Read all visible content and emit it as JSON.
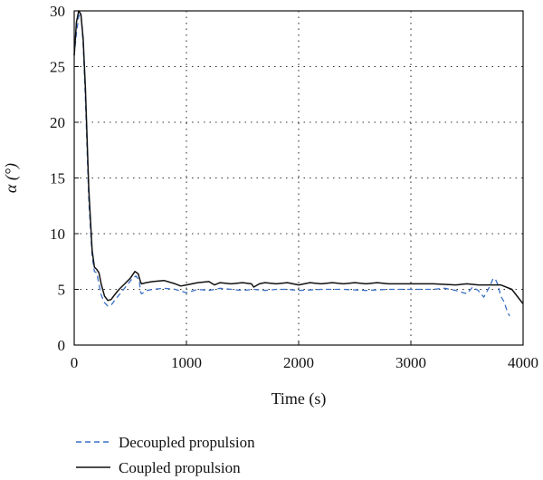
{
  "chart_data": {
    "type": "line",
    "title": "",
    "xlabel": "Time (s)",
    "ylabel": "α (°)",
    "xlim": [
      0,
      4000
    ],
    "ylim": [
      0,
      30
    ],
    "xticks": [
      0,
      1000,
      2000,
      3000,
      4000
    ],
    "yticks": [
      0,
      5,
      10,
      15,
      20,
      25,
      30
    ],
    "grid": "dotted",
    "legend_position": "bottom-left, below plot",
    "series": [
      {
        "name": "Decoupled propulsion",
        "style": "dashed",
        "color": "#3a6fc4",
        "x": [
          0,
          20,
          40,
          60,
          80,
          100,
          130,
          160,
          180,
          200,
          220,
          240,
          270,
          300,
          330,
          360,
          400,
          440,
          480,
          520,
          550,
          580,
          590,
          600,
          650,
          700,
          800,
          900,
          1000,
          1100,
          1200,
          1300,
          1400,
          1500,
          1600,
          1700,
          1800,
          1900,
          2000,
          2200,
          2400,
          2600,
          2800,
          3000,
          3200,
          3300,
          3400,
          3500,
          3550,
          3600,
          3650,
          3700,
          3730,
          3750,
          3780,
          3800,
          3830,
          3860,
          3880
        ],
        "y": [
          26,
          28,
          29.5,
          29.8,
          27,
          22,
          13,
          8,
          6.6,
          6.5,
          5.5,
          4.5,
          3.8,
          3.5,
          3.6,
          4.0,
          4.5,
          5.0,
          5.5,
          6.0,
          6.2,
          5.8,
          4.8,
          4.6,
          4.9,
          5.0,
          5.1,
          5.0,
          4.7,
          5.0,
          4.9,
          5.1,
          5.0,
          4.9,
          5.0,
          4.9,
          5.0,
          5.0,
          4.9,
          5.0,
          5.0,
          4.9,
          5.0,
          5.0,
          5.0,
          5.1,
          4.9,
          4.6,
          5.2,
          4.9,
          4.3,
          5.2,
          5.9,
          6.0,
          5.3,
          4.4,
          3.9,
          3.0,
          2.6
        ]
      },
      {
        "name": "Coupled propulsion",
        "style": "solid",
        "color": "#111111",
        "x": [
          0,
          20,
          40,
          60,
          80,
          100,
          130,
          160,
          180,
          200,
          220,
          240,
          270,
          300,
          330,
          360,
          400,
          450,
          500,
          540,
          570,
          590,
          600,
          640,
          700,
          800,
          900,
          950,
          1000,
          1100,
          1200,
          1250,
          1300,
          1400,
          1500,
          1580,
          1600,
          1650,
          1700,
          1800,
          1900,
          2000,
          2100,
          2200,
          2300,
          2400,
          2500,
          2600,
          2700,
          2800,
          3000,
          3200,
          3400,
          3500,
          3600,
          3700,
          3800,
          3900,
          4000
        ],
        "y": [
          26,
          29,
          30,
          29.7,
          27.5,
          23,
          14,
          8.5,
          7.0,
          6.8,
          6.5,
          5.5,
          4.4,
          4.0,
          4.1,
          4.5,
          5.0,
          5.5,
          6.0,
          6.6,
          6.4,
          5.7,
          5.5,
          5.6,
          5.7,
          5.8,
          5.5,
          5.3,
          5.4,
          5.6,
          5.7,
          5.4,
          5.6,
          5.5,
          5.6,
          5.5,
          5.2,
          5.5,
          5.6,
          5.5,
          5.6,
          5.4,
          5.6,
          5.5,
          5.6,
          5.5,
          5.6,
          5.5,
          5.6,
          5.5,
          5.5,
          5.5,
          5.4,
          5.5,
          5.4,
          5.4,
          5.4,
          5.0,
          3.7
        ]
      }
    ]
  }
}
